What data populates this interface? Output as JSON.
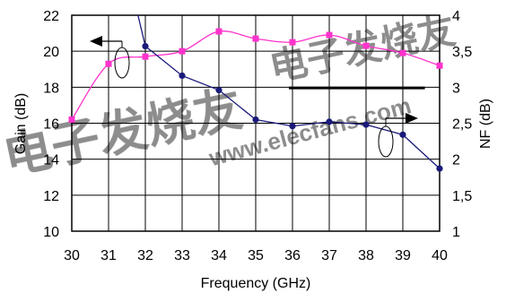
{
  "chart_data": {
    "type": "line",
    "xlabel": "Frequency (GHz)",
    "ylabel_left": "Gain (dB)",
    "ylabel_right": "NF (dB)",
    "x": [
      30,
      31,
      32,
      33,
      34,
      35,
      36,
      37,
      38,
      39,
      40
    ],
    "x_ticks": [
      "30",
      "31",
      "32",
      "33",
      "34",
      "35",
      "36",
      "37",
      "38",
      "39",
      "40"
    ],
    "ylim_left": [
      10,
      22
    ],
    "yticks_left": [
      "10",
      "12",
      "14",
      "16",
      "18",
      "20",
      "22"
    ],
    "ylim_right": [
      1,
      4
    ],
    "yticks_right": [
      "1",
      "1,5",
      "2",
      "2,5",
      "3",
      "3,5",
      "4"
    ],
    "grid": true,
    "series": [
      {
        "axis": "left",
        "color": "#ff33cc",
        "marker": "square",
        "x": [
          30,
          31,
          32,
          33,
          34,
          35,
          36,
          37,
          38,
          39,
          40
        ],
        "values": [
          16.2,
          19.3,
          19.7,
          20.0,
          21.1,
          20.7,
          20.5,
          20.9,
          20.3,
          19.9,
          19.2
        ]
      },
      {
        "axis": "right",
        "color": "#1a1a7a",
        "marker": "circle",
        "x": [
          31.8,
          32,
          33,
          34,
          35,
          36,
          37,
          38,
          39,
          40
        ],
        "values": [
          4.0,
          3.57,
          3.16,
          2.96,
          2.55,
          2.46,
          2.52,
          2.48,
          2.34,
          1.87
        ]
      }
    ],
    "annotations": [
      {
        "kind": "arrow-left",
        "target": "gain"
      },
      {
        "kind": "arrow-right",
        "target": "nf"
      },
      {
        "kind": "reference-line",
        "x": [
          36,
          39.6
        ],
        "value_right": 2.99
      }
    ],
    "background_watermark": {
      "text_latin": "www.elecfans.com",
      "text_cjk": "电子发烧友",
      "color": "#f5c0b8"
    }
  }
}
